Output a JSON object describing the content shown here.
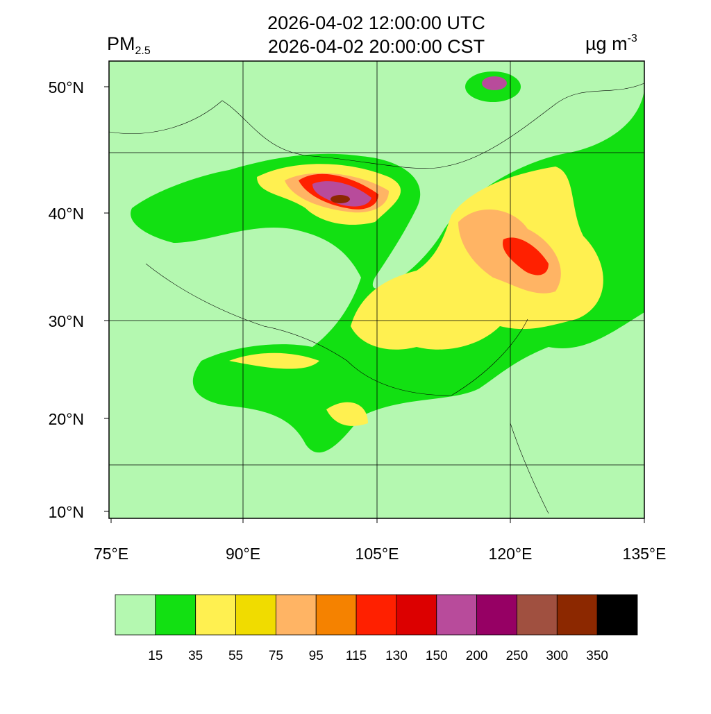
{
  "title": {
    "line1": "2026-04-02 12:00:00 UTC",
    "line2": "2026-04-02 20:00:00 CST",
    "variable": "PM",
    "variable_sub": "2.5",
    "units": "µg m",
    "units_sup": "-3"
  },
  "lat_labels": [
    "50°N",
    "40°N",
    "30°N",
    "20°N",
    "10°N"
  ],
  "lon_labels": [
    "75°E",
    "90°E",
    "105°E",
    "120°E",
    "135°E"
  ],
  "colorbar": {
    "colors": [
      "#b4f8b0",
      "#12e012",
      "#fff050",
      "#f0dc00",
      "#ffb464",
      "#f58200",
      "#ff2000",
      "#dc0000",
      "#b84b9b",
      "#960064",
      "#a05040",
      "#8c2800",
      "#000000"
    ],
    "labels": [
      "15",
      "35",
      "55",
      "75",
      "95",
      "115",
      "130",
      "150",
      "200",
      "250",
      "300",
      "350"
    ]
  }
}
